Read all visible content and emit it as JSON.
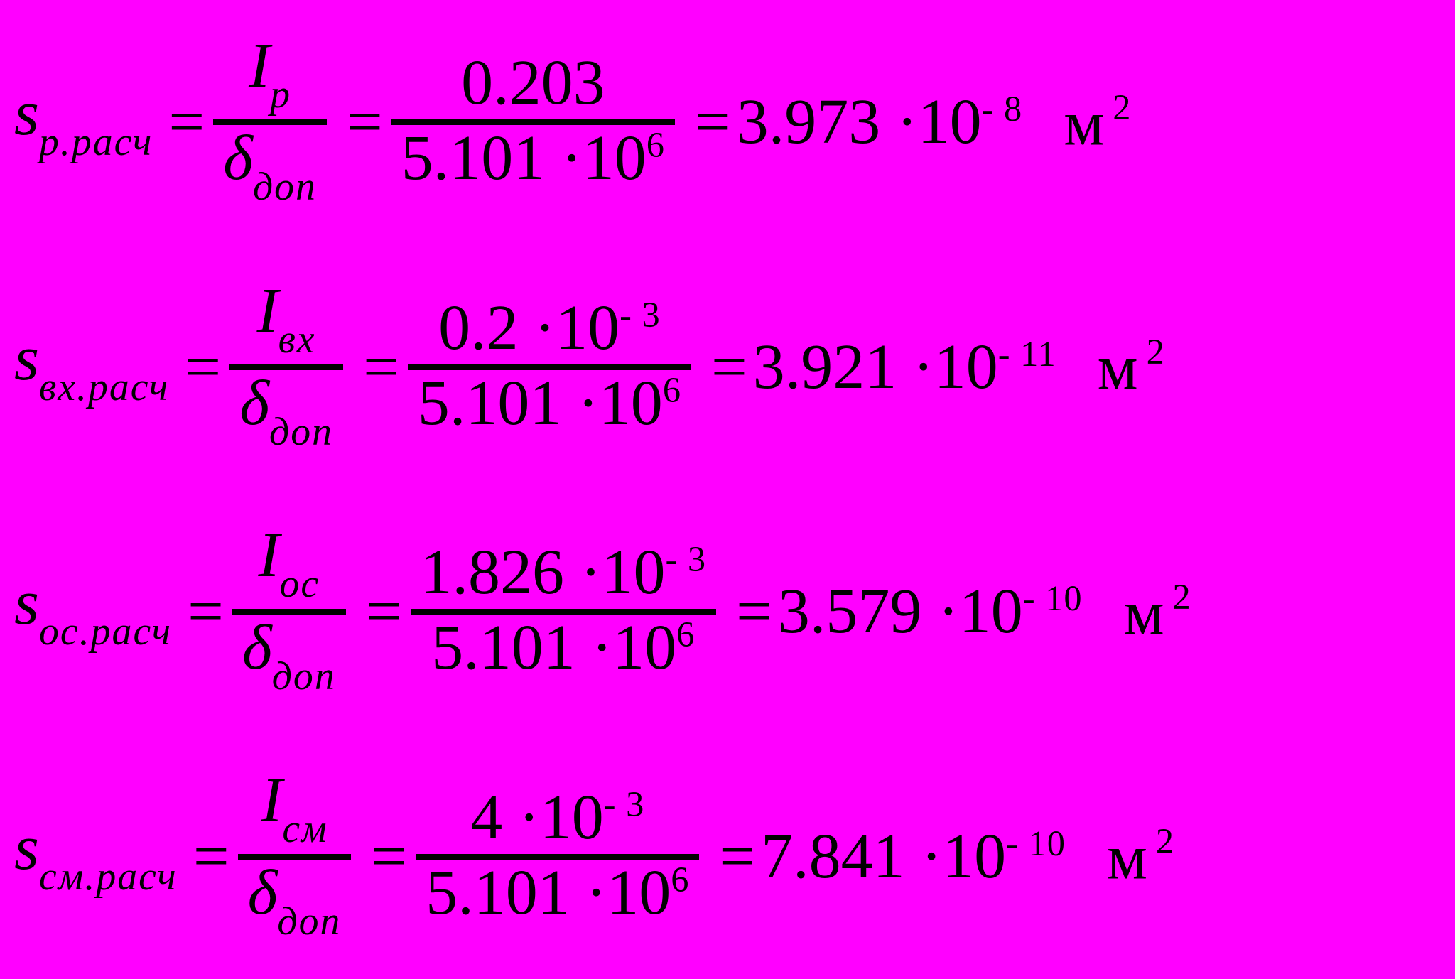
{
  "page": {
    "background": "#FF00FF",
    "text_color": "#000000",
    "equals": "="
  },
  "formulas": [
    {
      "lhs": {
        "base": "s",
        "sub": "р.расч"
      },
      "sym_frac": {
        "num_base": "I",
        "num_sub": "р",
        "den_base": "δ",
        "den_sub": "доп"
      },
      "num_frac": {
        "num_base": "0.203",
        "num_sup": "",
        "den_base": "5.101 ·10",
        "den_sup": "6"
      },
      "result": {
        "base": "3.973 ·10",
        "sup": "- 8"
      },
      "unit": {
        "base": "м",
        "sup": "2"
      }
    },
    {
      "lhs": {
        "base": "s",
        "sub": "вх.расч"
      },
      "sym_frac": {
        "num_base": "I",
        "num_sub": "вх",
        "den_base": "δ",
        "den_sub": "доп"
      },
      "num_frac": {
        "num_base": "0.2 ·10",
        "num_sup": "- 3",
        "den_base": "5.101 ·10",
        "den_sup": "6"
      },
      "result": {
        "base": "3.921 ·10",
        "sup": "- 11"
      },
      "unit": {
        "base": "м",
        "sup": "2"
      }
    },
    {
      "lhs": {
        "base": "s",
        "sub": "ос.расч"
      },
      "sym_frac": {
        "num_base": "I",
        "num_sub": "ос",
        "den_base": "δ",
        "den_sub": "доп"
      },
      "num_frac": {
        "num_base": "1.826 ·10",
        "num_sup": "- 3",
        "den_base": "5.101 ·10",
        "den_sup": "6"
      },
      "result": {
        "base": "3.579 ·10",
        "sup": "- 10"
      },
      "unit": {
        "base": "м",
        "sup": "2"
      }
    },
    {
      "lhs": {
        "base": "s",
        "sub": "см.расч"
      },
      "sym_frac": {
        "num_base": "I",
        "num_sub": "см",
        "den_base": "δ",
        "den_sub": "доп"
      },
      "num_frac": {
        "num_base": "4 ·10",
        "num_sup": "- 3",
        "den_base": "5.101 ·10",
        "den_sup": "6"
      },
      "result": {
        "base": "7.841 ·10",
        "sup": "- 10"
      },
      "unit": {
        "base": "м",
        "sup": "2"
      }
    }
  ]
}
